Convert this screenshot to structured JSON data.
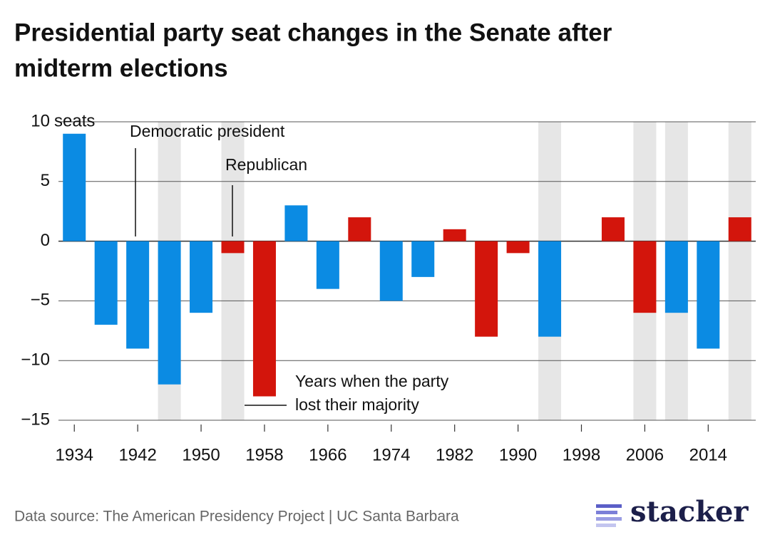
{
  "chart_data": {
    "type": "bar",
    "title": "Presidential party seat changes in the Senate after",
    "title_line2": "midterm elections",
    "x": [
      1934,
      1938,
      1942,
      1946,
      1950,
      1954,
      1958,
      1962,
      1966,
      1970,
      1974,
      1978,
      1982,
      1986,
      1990,
      1994,
      1998,
      2002,
      2006,
      2010,
      2014,
      2018
    ],
    "values": [
      9,
      -7,
      -9,
      -12,
      -6,
      -1,
      -13,
      3,
      -4,
      2,
      -5,
      -3,
      1,
      -8,
      -1,
      -8,
      0,
      2,
      -6,
      -6,
      -9,
      2
    ],
    "colors": [
      "#0b8be3",
      "#0b8be3",
      "#0b8be3",
      "#0b8be3",
      "#0b8be3",
      "#d3150c",
      "#d3150c",
      "#0b8be3",
      "#0b8be3",
      "#d3150c",
      "#0b8be3",
      "#0b8be3",
      "#d3150c",
      "#d3150c",
      "#d3150c",
      "#0b8be3",
      "#0b8be3",
      "#d3150c",
      "#d3150c",
      "#0b8be3",
      "#0b8be3",
      "#d3150c"
    ],
    "shaded": [
      false,
      false,
      false,
      true,
      false,
      true,
      false,
      false,
      false,
      false,
      false,
      false,
      false,
      false,
      false,
      true,
      false,
      false,
      true,
      true,
      false,
      true
    ],
    "shade_color": "#e6e6e6",
    "xlim": [
      1932,
      2020
    ],
    "xticks": [
      1934,
      1942,
      1950,
      1958,
      1966,
      1974,
      1982,
      1990,
      1998,
      2006,
      2014
    ],
    "ylim": [
      -15,
      10
    ],
    "yticks": [
      {
        "value": -15,
        "label": "−15"
      },
      {
        "value": -10,
        "label": "−10"
      },
      {
        "value": -5,
        "label": "−5"
      },
      0,
      5,
      10
    ],
    "y_unit": "seats",
    "grid": true,
    "annotations": [
      "Democratic president",
      "Republican",
      "Years when the party",
      "lost their majority"
    ],
    "source": "Data source: The American Presidency Project | UC Santa Barbara",
    "brand": "stacker"
  }
}
